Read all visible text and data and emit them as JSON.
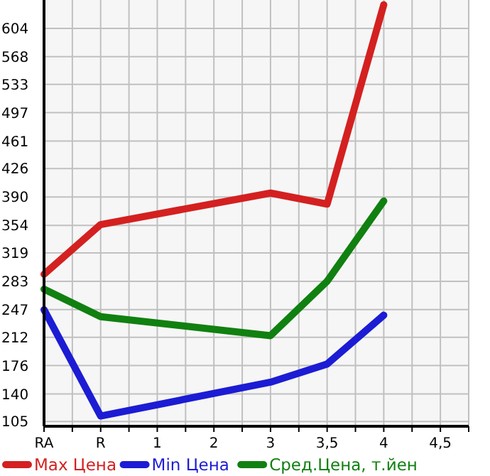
{
  "chart_data": {
    "type": "line",
    "categories": [
      "RA",
      null,
      "R",
      null,
      "1",
      null,
      "2",
      null,
      "3",
      null,
      "3,5",
      null,
      "4",
      null,
      "4,5",
      null
    ],
    "ylim": [
      99,
      640
    ],
    "yticks": [
      105,
      140,
      176,
      212,
      247,
      283,
      319,
      354,
      390,
      426,
      461,
      497,
      533,
      568,
      604
    ],
    "grid": true,
    "legend": "bottom",
    "marker": "none",
    "line_style": "solid",
    "series": [
      {
        "name": "Max Цена",
        "color": "#d42020",
        "values": [
          292,
          null,
          355,
          null,
          null,
          null,
          null,
          null,
          395,
          null,
          381,
          null,
          634,
          null,
          null,
          null
        ]
      },
      {
        "name": "Min Цена",
        "color": "#1c1cd4",
        "values": [
          247,
          null,
          112,
          null,
          null,
          null,
          null,
          null,
          155,
          null,
          178,
          null,
          240,
          null,
          null,
          null
        ]
      },
      {
        "name": "Сред.Цена, т.йен",
        "color": "#108010",
        "values": [
          273,
          null,
          238,
          null,
          null,
          null,
          null,
          null,
          214,
          null,
          283,
          null,
          385,
          null,
          null,
          null
        ]
      }
    ]
  }
}
